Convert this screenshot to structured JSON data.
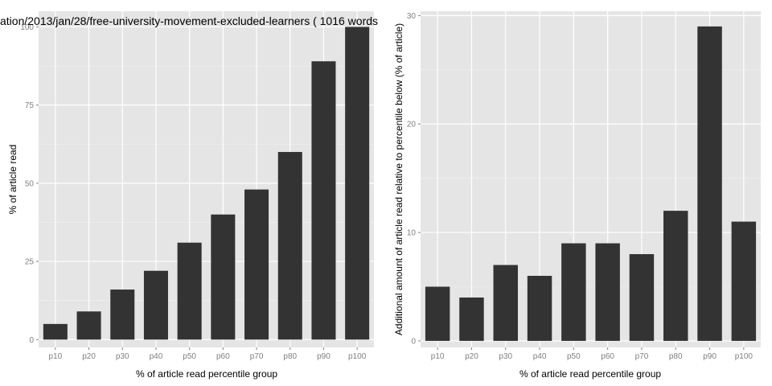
{
  "chart_data": [
    {
      "type": "bar",
      "title": "ation/2013/jan/28/free-university-movement-excluded-learners ( 1016 words",
      "xlabel": "% of article read percentile group",
      "ylabel": "% of article read",
      "categories": [
        "p10",
        "p20",
        "p30",
        "p40",
        "p50",
        "p60",
        "p70",
        "p80",
        "p90",
        "p100"
      ],
      "values": [
        5,
        9,
        16,
        22,
        31,
        40,
        48,
        60,
        89,
        100
      ],
      "ylim": [
        -2.5,
        105
      ],
      "yticks": [
        0,
        25,
        50,
        75,
        100
      ],
      "grid": true,
      "bar_color": "#333333",
      "panel_color": "#e5e5e5"
    },
    {
      "type": "bar",
      "title": "",
      "xlabel": "% of article read percentile group",
      "ylabel": "Additional amount of article read relative to percentile below (% of article)",
      "categories": [
        "p10",
        "p20",
        "p30",
        "p40",
        "p50",
        "p60",
        "p70",
        "p80",
        "p90",
        "p100"
      ],
      "values": [
        5,
        4,
        7,
        6,
        9,
        9,
        8,
        12,
        29,
        11
      ],
      "ylim": [
        -0.6,
        30.4
      ],
      "yticks": [
        0,
        10,
        20,
        30
      ],
      "grid": true,
      "bar_color": "#333333",
      "panel_color": "#e5e5e5"
    }
  ]
}
